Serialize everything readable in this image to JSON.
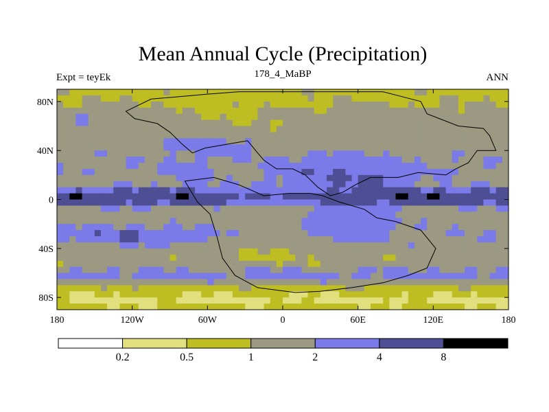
{
  "chart_data": {
    "type": "heatmap",
    "title": "Mean Annual Cycle (Precipitation)",
    "left_label": "Expt = teyEk",
    "center_label": "178_4_MaBP",
    "right_label": "ANN",
    "x_range": [
      -180,
      180
    ],
    "y_range": [
      -90,
      90
    ],
    "x_ticks": [
      {
        "value": -180,
        "label": "180"
      },
      {
        "value": -120,
        "label": "120W"
      },
      {
        "value": -60,
        "label": "60W"
      },
      {
        "value": 0,
        "label": "0"
      },
      {
        "value": 60,
        "label": "60E"
      },
      {
        "value": 120,
        "label": "120E"
      },
      {
        "value": 180,
        "label": "180"
      }
    ],
    "y_ticks": [
      {
        "value": 80,
        "label": "80N"
      },
      {
        "value": 40,
        "label": "40N"
      },
      {
        "value": 0,
        "label": "0"
      },
      {
        "value": -40,
        "label": "40S"
      },
      {
        "value": -80,
        "label": "80S"
      }
    ],
    "levels": [
      "0.2",
      "0.5",
      "1",
      "2",
      "4",
      "8"
    ],
    "colors": [
      "#ffffff",
      "#e2e07e",
      "#bebd22",
      "#9c9982",
      "#7a7ae8",
      "#4e4e94",
      "#000000"
    ]
  }
}
